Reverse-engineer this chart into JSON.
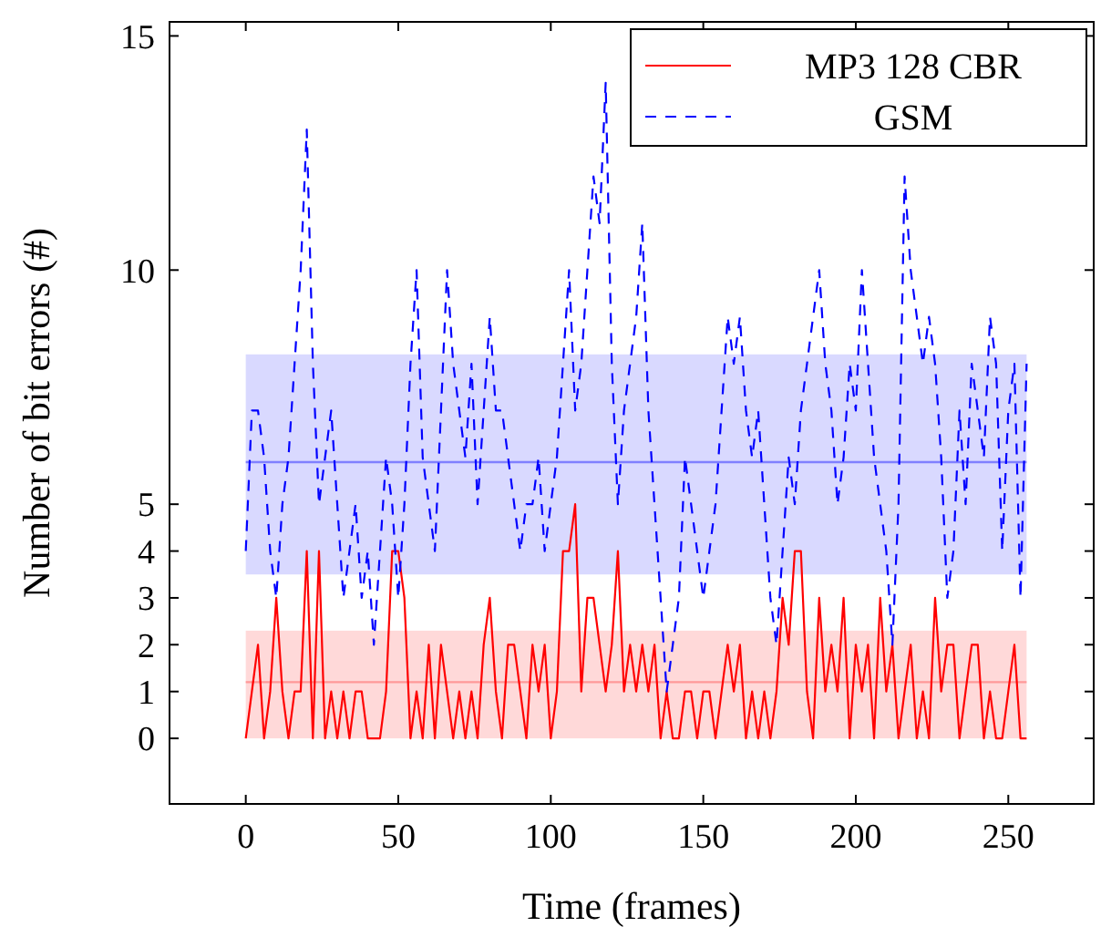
{
  "chart_data": {
    "type": "line",
    "xlabel": "Time (frames)",
    "ylabel": "Number of bit errors (#)",
    "xlim": [
      -25,
      278
    ],
    "ylim": [
      -1.4,
      15.3
    ],
    "xticks": [
      0,
      50,
      100,
      150,
      200,
      250
    ],
    "yticks": [
      0,
      1,
      2,
      3,
      4,
      5,
      10,
      15
    ],
    "legend": "top right",
    "grid": false,
    "x": [
      0,
      2,
      4,
      6,
      8,
      10,
      12,
      14,
      16,
      18,
      20,
      22,
      24,
      26,
      28,
      30,
      32,
      34,
      36,
      38,
      40,
      42,
      44,
      46,
      48,
      50,
      52,
      54,
      56,
      58,
      60,
      62,
      64,
      66,
      68,
      70,
      72,
      74,
      76,
      78,
      80,
      82,
      84,
      86,
      88,
      90,
      92,
      94,
      96,
      98,
      100,
      102,
      104,
      106,
      108,
      110,
      112,
      114,
      116,
      118,
      120,
      122,
      124,
      126,
      128,
      130,
      132,
      134,
      136,
      138,
      140,
      142,
      144,
      146,
      148,
      150,
      152,
      154,
      156,
      158,
      160,
      162,
      164,
      166,
      168,
      170,
      172,
      174,
      176,
      178,
      180,
      182,
      184,
      186,
      188,
      190,
      192,
      194,
      196,
      198,
      200,
      202,
      204,
      206,
      208,
      210,
      212,
      214,
      216,
      218,
      220,
      222,
      224,
      226,
      228,
      230,
      232,
      234,
      236,
      238,
      240,
      242,
      244,
      246,
      248,
      250,
      252,
      254,
      256
    ],
    "series": [
      {
        "name": "MP3 128 CBR",
        "color": "#ff0000",
        "line_style": "solid",
        "values": [
          0,
          1,
          2,
          0,
          1,
          3,
          1,
          0,
          1,
          1,
          4,
          0,
          4,
          0,
          1,
          0,
          1,
          0,
          1,
          1,
          0,
          0,
          0,
          1,
          4,
          4,
          3,
          0,
          1,
          0,
          2,
          0,
          2,
          1,
          0,
          1,
          0,
          1,
          0,
          2,
          3,
          1,
          0,
          2,
          2,
          1,
          0,
          2,
          1,
          2,
          0,
          1,
          4,
          4,
          5,
          1,
          3,
          3,
          2,
          1,
          2,
          4,
          1,
          2,
          1,
          2,
          1,
          2,
          0,
          1,
          0,
          0,
          1,
          1,
          0,
          1,
          1,
          0,
          1,
          2,
          1,
          2,
          0,
          1,
          0,
          1,
          0,
          1,
          3,
          2,
          4,
          4,
          1,
          0,
          3,
          1,
          2,
          1,
          3,
          0,
          2,
          1,
          2,
          0,
          3,
          1,
          2,
          0,
          1,
          2,
          0,
          1,
          0,
          3,
          1,
          2,
          2,
          0,
          1,
          2,
          2,
          0,
          1,
          0,
          0,
          1,
          2,
          0,
          0
        ]
      },
      {
        "name": "GSM",
        "color": "#0000ff",
        "line_style": "dashed",
        "values": [
          4,
          7,
          7,
          6,
          4,
          3,
          5,
          6,
          8,
          10,
          13,
          8,
          5,
          6,
          7,
          5,
          3,
          4,
          5,
          3,
          4,
          2,
          4,
          6,
          5,
          3,
          5,
          8,
          10,
          6,
          5,
          4,
          7,
          10,
          8,
          7,
          6,
          8,
          5,
          7,
          9,
          7,
          7,
          6,
          5,
          4,
          5,
          5,
          6,
          4,
          5,
          6,
          8,
          10,
          7,
          8,
          10,
          12,
          11,
          14,
          8,
          5,
          7,
          8,
          9,
          11,
          7,
          5,
          3,
          1,
          2,
          3,
          6,
          5,
          4,
          3,
          4,
          5,
          7,
          9,
          8,
          9,
          7,
          6,
          7,
          5,
          3,
          2,
          4,
          6,
          5,
          7,
          8,
          9,
          10,
          8,
          7,
          5,
          6,
          8,
          7,
          10,
          8,
          6,
          5,
          4,
          2,
          5,
          12,
          10,
          9,
          8,
          9,
          8,
          6,
          3,
          4,
          7,
          5,
          8,
          7,
          6,
          9,
          8,
          4,
          7,
          8,
          3,
          8
        ]
      }
    ],
    "bands": [
      {
        "axis": "y",
        "from": 0,
        "to": 2.3,
        "color": "#ffd9d9"
      },
      {
        "axis": "y",
        "from": 3.5,
        "to": 8.2,
        "color": "#d9d9ff"
      }
    ],
    "ref_lines": [
      {
        "axis": "y",
        "value": 1.2,
        "color": "#ff9999"
      },
      {
        "axis": "y",
        "value": 5.9,
        "color": "#8080ff"
      }
    ]
  }
}
